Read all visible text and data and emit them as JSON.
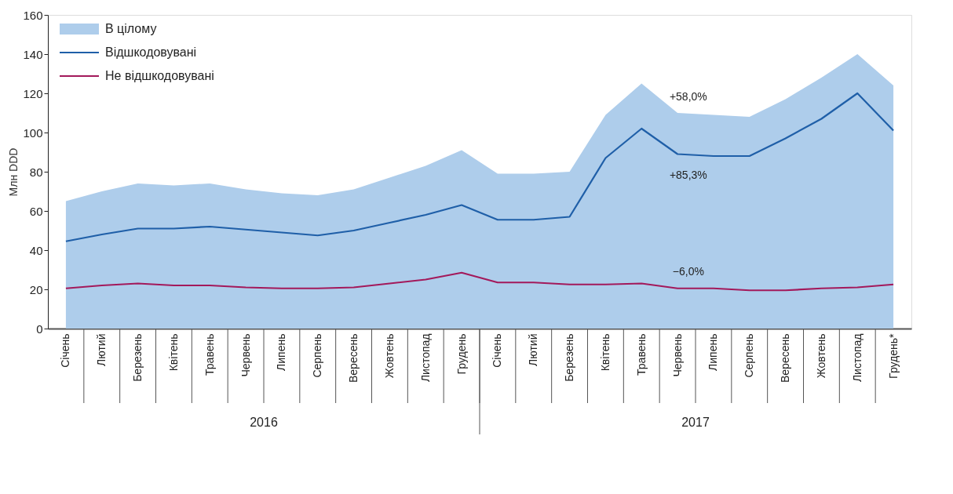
{
  "chart_data": {
    "type": "area",
    "ylabel": "Млн DDD",
    "categories": [
      "Січень",
      "Лютий",
      "Березень",
      "Квітень",
      "Травень",
      "Червень",
      "Липень",
      "Серпень",
      "Вересень",
      "Жовтень",
      "Листопад",
      "Грудень",
      "Січень",
      "Лютий",
      "Березень",
      "Квітень",
      "Травень",
      "Червень",
      "Липень",
      "Серпень",
      "Вересень",
      "Жовтень",
      "Листопад",
      "Грудень*"
    ],
    "series": [
      {
        "name": "В цілому",
        "color": "#aecdeb",
        "values": [
          65,
          70,
          74,
          73,
          74,
          71,
          69,
          68,
          71,
          77,
          83,
          91,
          79,
          79,
          80,
          109,
          125,
          110,
          109,
          108,
          117,
          128,
          140,
          124
        ]
      },
      {
        "name": "Відшкодовувані",
        "type": "line",
        "color": "#1f5fa8",
        "values": [
          44.5,
          48,
          51,
          51,
          52,
          50.5,
          49,
          47.5,
          50,
          54,
          58,
          63,
          55.5,
          55.5,
          57,
          87,
          102,
          89,
          88,
          88,
          97,
          107,
          120,
          101
        ]
      },
      {
        "name": "Не відшкодовувані",
        "type": "line",
        "color": "#a3195b",
        "values": [
          20.5,
          22,
          23,
          22,
          22,
          21,
          20.5,
          20.5,
          21,
          23,
          25,
          28.5,
          23.5,
          23.5,
          22.5,
          22.5,
          23,
          20.5,
          20.5,
          19.5,
          19.5,
          20.5,
          21,
          22.5
        ]
      }
    ],
    "ylim": [
      0,
      160
    ],
    "yticks": [
      0,
      20,
      40,
      60,
      80,
      100,
      120,
      140,
      160
    ],
    "annotations": [
      "+58,0%",
      "+85,3%",
      "−6,0%",
      "2016",
      "2017"
    ],
    "legend": "top left",
    "grid": false,
    "line_style": "solid",
    "marker": "none"
  }
}
